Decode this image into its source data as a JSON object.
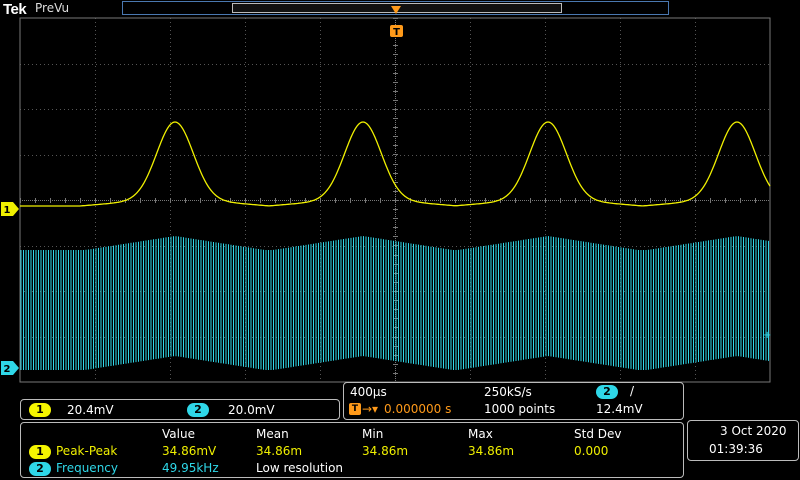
{
  "header": {
    "brand": "Tek",
    "mode": "PreVu"
  },
  "trigger_marker": {
    "label": "T"
  },
  "channels": [
    {
      "id": "1",
      "color": "#f0f000"
    },
    {
      "id": "2",
      "color": "#2fd7e8"
    }
  ],
  "vertical": {
    "ch1_scale": "20.4mV",
    "ch2_scale": "20.0mV"
  },
  "timebase": {
    "time_per_div": "400µs",
    "sample_rate": "250kS/s",
    "trigger_source": "2",
    "trigger_slope": "/",
    "trigger_delay_label": "T",
    "trigger_delay": "0.000000 s",
    "record_length": "1000 points",
    "trigger_level": "12.4mV"
  },
  "measurements": {
    "headers": [
      "Value",
      "Mean",
      "Min",
      "Max",
      "Std Dev"
    ],
    "rows": [
      {
        "channel": "1",
        "name": "Peak-Peak",
        "value": "34.86mV",
        "mean": "34.86m",
        "min": "34.86m",
        "max": "34.86m",
        "stddev": "0.000"
      },
      {
        "channel": "2",
        "name": "Frequency",
        "value": "49.95kHz",
        "note": "Low resolution"
      }
    ]
  },
  "datetime": {
    "date": "3 Oct  2020",
    "time": "01:39:36"
  }
}
